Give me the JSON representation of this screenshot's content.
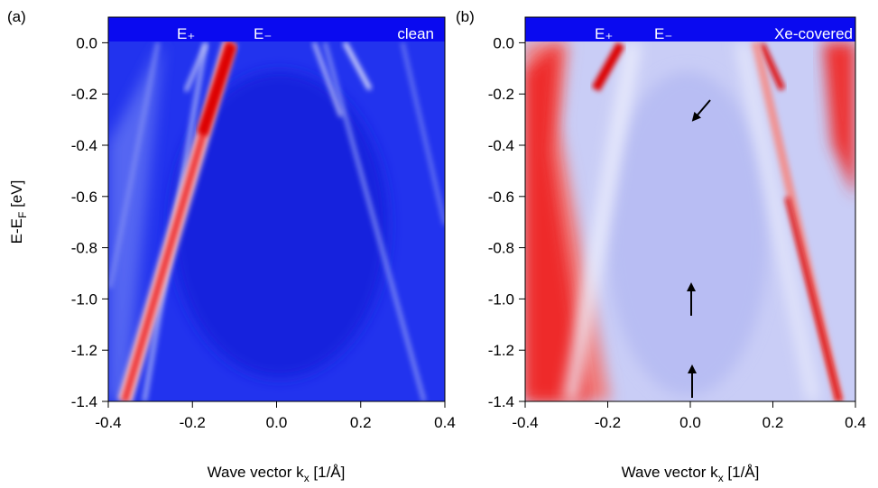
{
  "chart_data": [
    {
      "type": "heatmap",
      "panel_label": "(a)",
      "annotations": [
        "E₊",
        "E₋",
        "clean"
      ],
      "xlabel": [
        "Wave vector k",
        "x",
        " [1/Å]"
      ],
      "ylabel": [
        "E-E",
        "F",
        " [eV]"
      ],
      "xlim": [
        -0.4,
        0.4
      ],
      "ylim": [
        -1.4,
        0.1
      ],
      "xticks": [
        -0.4,
        -0.2,
        {
          "value": 0,
          "label": "0.0"
        },
        0.2,
        0.4
      ],
      "yticks": [
        {
          "value": 0,
          "label": "0.0"
        },
        -0.2,
        -0.4,
        -0.6,
        -0.8,
        {
          "value": -1,
          "label": "-1.0"
        },
        -1.2,
        -1.4
      ]
    },
    {
      "type": "heatmap",
      "panel_label": "(b)",
      "annotations": [
        "E₊",
        "E₋",
        "Xe-covered"
      ],
      "xlabel": [
        "Wave vector k",
        "x",
        " [1/Å]"
      ],
      "xlim": [
        -0.4,
        0.4
      ],
      "ylim": [
        -1.4,
        0.1
      ],
      "xticks": [
        -0.4,
        -0.2,
        {
          "value": 0,
          "label": "0.0"
        },
        0.2,
        0.4
      ],
      "yticks": [
        {
          "value": 0,
          "label": "0.0"
        },
        -0.2,
        -0.4,
        -0.6,
        -0.8,
        {
          "value": -1,
          "label": "-1.0"
        },
        -1.2,
        -1.4
      ]
    }
  ]
}
